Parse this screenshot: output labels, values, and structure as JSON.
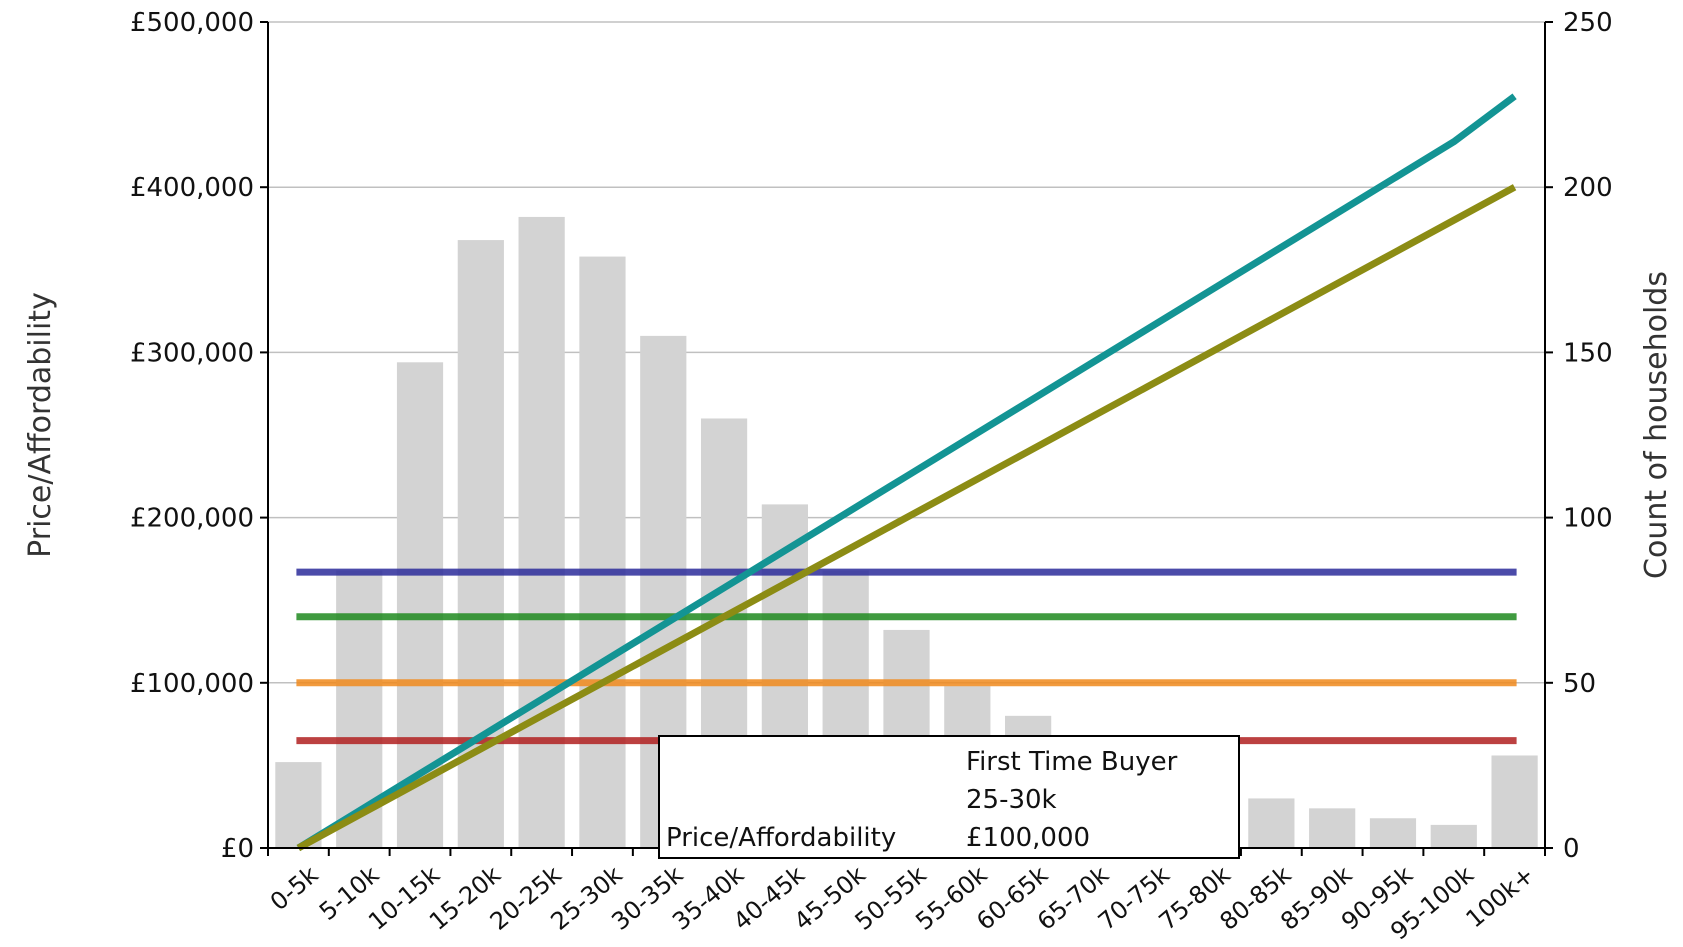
{
  "chart_data": {
    "type": "bar",
    "categories": [
      "0-5k",
      "5-10k",
      "10-15k",
      "15-20k",
      "20-25k",
      "25-30k",
      "30-35k",
      "35-40k",
      "40-45k",
      "45-50k",
      "50-55k",
      "55-60k",
      "60-65k",
      "65-70k",
      "70-75k",
      "75-80k",
      "80-85k",
      "85-90k",
      "90-95k",
      "95-100k",
      "100k+"
    ],
    "ylabel": "Price/Affordability",
    "y2label": "Count of households",
    "ylim": [
      0,
      500000
    ],
    "y2lim": [
      0,
      250
    ],
    "yticks": [
      "£0",
      "£100,000",
      "£200,000",
      "£300,000",
      "£400,000",
      "£500,000"
    ],
    "y2ticks": [
      "0",
      "50",
      "100",
      "150",
      "200",
      "250"
    ],
    "grid": true,
    "bars": {
      "axis": "right",
      "color": "#d3d3d3",
      "values": [
        26,
        84,
        147,
        184,
        191,
        179,
        155,
        130,
        104,
        84,
        66,
        49,
        40,
        30,
        25,
        20,
        15,
        12,
        9,
        7,
        28
      ]
    },
    "lines": [
      {
        "color": "#139494",
        "values": [
          0,
          22500,
          45000,
          67500,
          90000,
          112500,
          135000,
          157500,
          180000,
          202500,
          225000,
          247500,
          270000,
          292500,
          315000,
          337500,
          360000,
          382500,
          405000,
          427500,
          455000
        ]
      },
      {
        "color": "#8c8c14",
        "values": [
          0,
          20000,
          40000,
          60000,
          80000,
          100000,
          120000,
          140000,
          160000,
          180000,
          200000,
          220000,
          240000,
          260000,
          280000,
          300000,
          320000,
          340000,
          360000,
          380000,
          400000
        ]
      },
      {
        "color": "#2b2b9a",
        "values": "constant",
        "constant": 167000
      },
      {
        "color": "#1e8a1e",
        "values": "constant",
        "constant": 140000
      },
      {
        "color": "#f08a1c",
        "values": "constant",
        "constant": 100000
      },
      {
        "color": "#b02020",
        "values": "constant",
        "constant": 65000
      }
    ],
    "tooltip": {
      "series": "First Time Buyer",
      "category": "25-30k",
      "label": "Price/Affordability",
      "value": "£100,000"
    }
  }
}
